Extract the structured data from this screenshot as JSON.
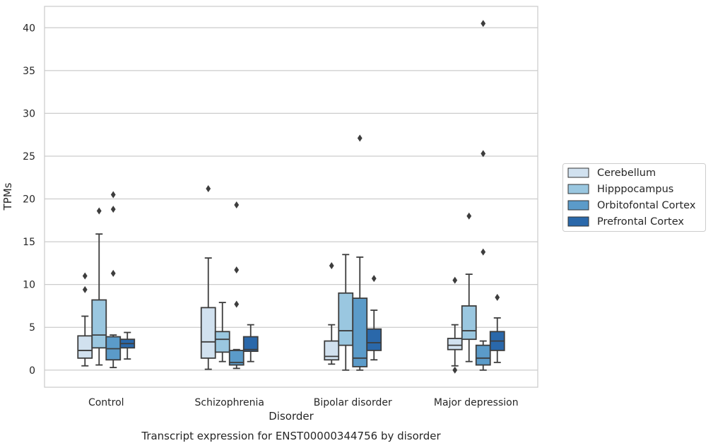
{
  "chart_data": {
    "type": "boxplot",
    "title": "Transcript expression for ENST00000344756 by disorder",
    "xlabel": "Disorder",
    "ylabel": "TPMs",
    "ylim": [
      -2,
      42.5
    ],
    "yticks": [
      "0",
      "5",
      "10",
      "15",
      "20",
      "25",
      "30",
      "35",
      "40"
    ],
    "grid": true,
    "legend_position": "right",
    "categories": [
      "Control",
      "Schizophrenia",
      "Bipolar disorder",
      "Major depression"
    ],
    "series": [
      {
        "name": "Cerebellum",
        "color": "#d1e1ef",
        "boxes": [
          {
            "whislo": 0.5,
            "q1": 1.4,
            "med": 2.3,
            "q3": 4.0,
            "whishi": 6.3,
            "fliers": [
              9.4,
              11.0
            ]
          },
          {
            "whislo": 0.1,
            "q1": 1.4,
            "med": 3.3,
            "q3": 7.3,
            "whishi": 13.1,
            "fliers": [
              21.2
            ]
          },
          {
            "whislo": 0.7,
            "q1": 1.2,
            "med": 1.6,
            "q3": 3.4,
            "whishi": 5.3,
            "fliers": [
              12.2
            ]
          },
          {
            "whislo": 0.5,
            "q1": 2.4,
            "med": 2.9,
            "q3": 3.7,
            "whishi": 5.3,
            "fliers": [
              0.0,
              10.5
            ]
          }
        ]
      },
      {
        "name": "Hipppocampus",
        "color": "#9ac7e0",
        "boxes": [
          {
            "whislo": 0.6,
            "q1": 2.6,
            "med": 4.1,
            "q3": 8.2,
            "whishi": 15.9,
            "fliers": [
              18.6
            ]
          },
          {
            "whislo": 1.0,
            "q1": 2.1,
            "med": 3.6,
            "q3": 4.5,
            "whishi": 7.9,
            "fliers": []
          },
          {
            "whislo": 0.0,
            "q1": 2.9,
            "med": 4.6,
            "q3": 9.0,
            "whishi": 13.5,
            "fliers": []
          },
          {
            "whislo": 1.0,
            "q1": 3.6,
            "med": 4.6,
            "q3": 7.5,
            "whishi": 11.2,
            "fliers": [
              18.0
            ]
          }
        ]
      },
      {
        "name": "Orbitofontal Cortex",
        "color": "#5b9bc9",
        "boxes": [
          {
            "whislo": 0.3,
            "q1": 1.2,
            "med": 2.5,
            "q3": 3.9,
            "whishi": 4.1,
            "fliers": [
              11.3,
              18.8,
              20.5
            ]
          },
          {
            "whislo": 0.2,
            "q1": 0.6,
            "med": 0.9,
            "q3": 2.3,
            "whishi": 2.4,
            "fliers": [
              7.7,
              11.7,
              19.3
            ]
          },
          {
            "whislo": 0.0,
            "q1": 0.4,
            "med": 1.4,
            "q3": 8.4,
            "whishi": 13.2,
            "fliers": [
              27.1
            ]
          },
          {
            "whislo": 0.0,
            "q1": 0.6,
            "med": 1.4,
            "q3": 2.9,
            "whishi": 3.4,
            "fliers": [
              13.8,
              25.3,
              40.5
            ]
          }
        ]
      },
      {
        "name": "Prefrontal Cortex",
        "color": "#2a68aa",
        "boxes": [
          {
            "whislo": 1.3,
            "q1": 2.6,
            "med": 3.1,
            "q3": 3.6,
            "whishi": 4.4,
            "fliers": []
          },
          {
            "whislo": 1.0,
            "q1": 2.2,
            "med": 2.4,
            "q3": 3.9,
            "whishi": 5.3,
            "fliers": []
          },
          {
            "whislo": 1.2,
            "q1": 2.3,
            "med": 3.2,
            "q3": 4.8,
            "whishi": 7.0,
            "fliers": [
              10.7
            ]
          },
          {
            "whislo": 0.9,
            "q1": 2.3,
            "med": 3.4,
            "q3": 4.5,
            "whishi": 6.1,
            "fliers": [
              8.5
            ]
          }
        ]
      }
    ]
  }
}
